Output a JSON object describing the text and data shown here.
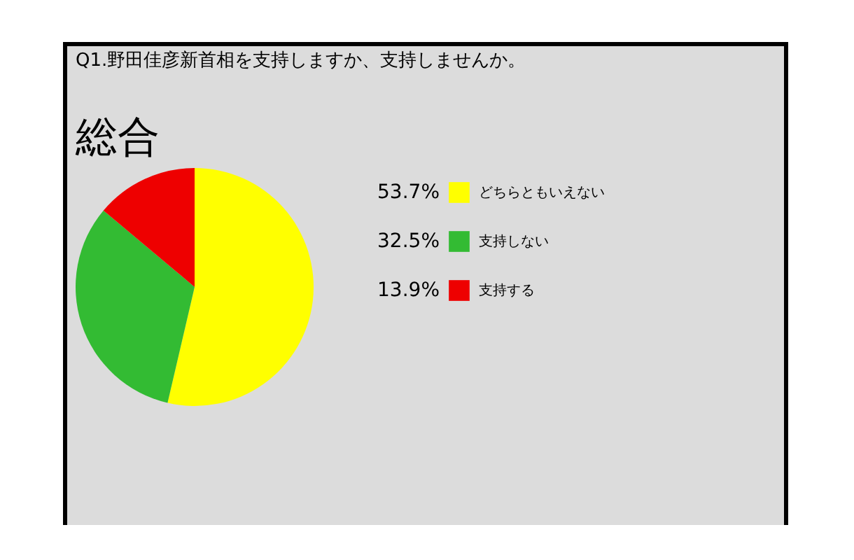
{
  "chart_data": {
    "type": "pie",
    "title": "Q1.野田佳彦新首相を支持しますか、支持しませんか。",
    "subtitle": "総合",
    "categories": [
      "どちらともいえない",
      "支持しない",
      "支持する"
    ],
    "values": [
      53.7,
      32.5,
      13.9
    ],
    "value_labels": [
      "53.7%",
      "32.5%",
      "13.9%"
    ],
    "colors": [
      "#ffff00",
      "#33bb33",
      "#ee0000"
    ],
    "legend": "right"
  }
}
